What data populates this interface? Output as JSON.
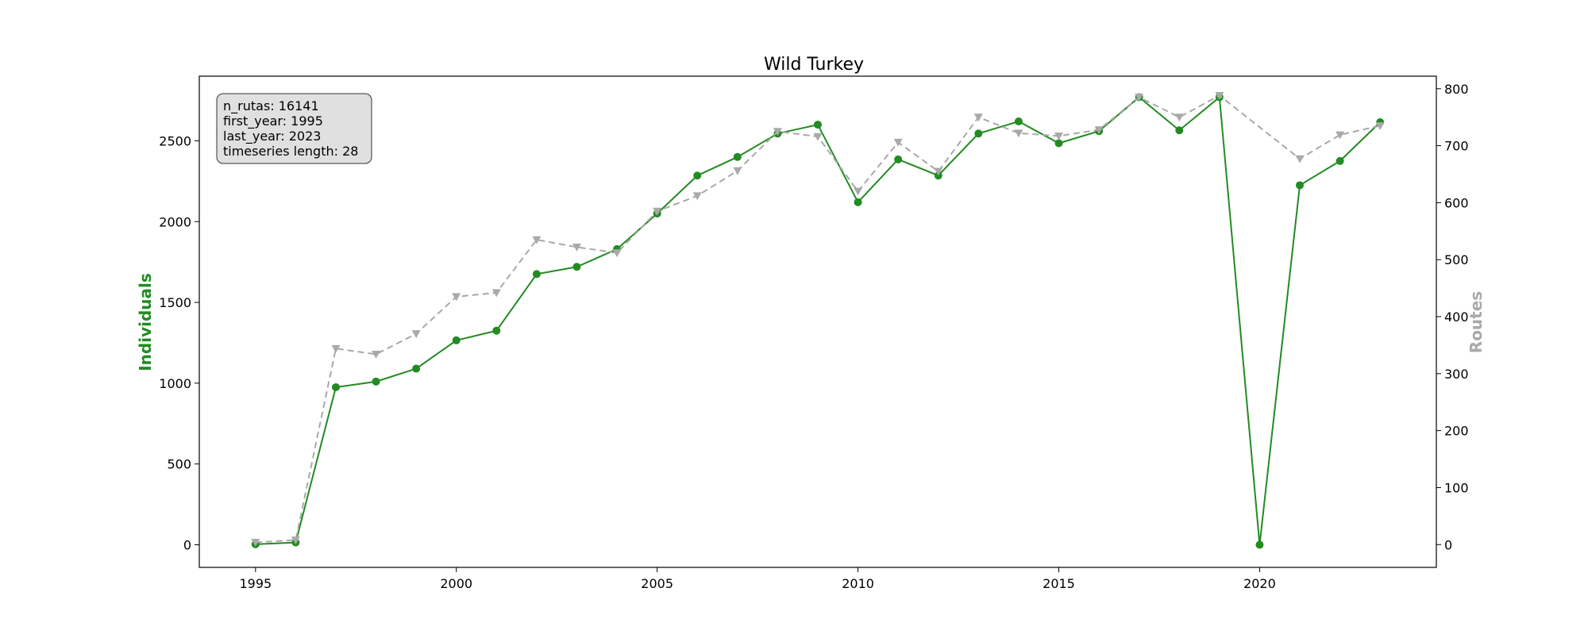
{
  "chart_data": {
    "type": "line",
    "title": "Wild Turkey",
    "xlabel": "",
    "ylabel_left": "Individuals",
    "ylabel_right": "Routes",
    "x": [
      1995,
      1996,
      1997,
      1998,
      1999,
      2000,
      2001,
      2002,
      2003,
      2004,
      2005,
      2006,
      2007,
      2008,
      2009,
      2010,
      2011,
      2012,
      2013,
      2014,
      2015,
      2016,
      2017,
      2018,
      2019,
      2020,
      2021,
      2022,
      2023
    ],
    "xlim": [
      1993.6,
      2024.4
    ],
    "xticks": [
      1995,
      2000,
      2005,
      2010,
      2015,
      2020
    ],
    "ylim_left": [
      -140,
      2900
    ],
    "yticks_left": [
      0,
      500,
      1000,
      1500,
      2000,
      2500
    ],
    "ylim_right": [
      -40,
      822
    ],
    "yticks_right": [
      0,
      100,
      200,
      300,
      400,
      500,
      600,
      700,
      800
    ],
    "grid": false,
    "series": [
      {
        "name": "Individuals",
        "axis": "left",
        "color": "#228b22",
        "style": "solid",
        "marker": "circle",
        "values": [
          3,
          14,
          975,
          1010,
          1090,
          1265,
          1325,
          1675,
          1720,
          1830,
          2050,
          2285,
          2400,
          2545,
          2600,
          2120,
          2385,
          2285,
          2545,
          2620,
          2485,
          2560,
          2770,
          2565,
          2770,
          0,
          2225,
          2375,
          2615
        ]
      },
      {
        "name": "Routes",
        "axis": "right",
        "color": "#a9a9a9",
        "style": "dashed",
        "marker": "triangle-down",
        "values": [
          4,
          8,
          344,
          334,
          370,
          435,
          442,
          535,
          522,
          512,
          585,
          612,
          656,
          725,
          716,
          620,
          706,
          655,
          750,
          722,
          717,
          728,
          785,
          750,
          788,
          null,
          677,
          719,
          735
        ]
      }
    ],
    "annotation": {
      "lines": [
        "n_rutas: 16141",
        "first_year: 1995",
        "last_year: 2023",
        "timeseries length: 28"
      ],
      "position": "top-left",
      "background": "#e0e0e0"
    }
  }
}
